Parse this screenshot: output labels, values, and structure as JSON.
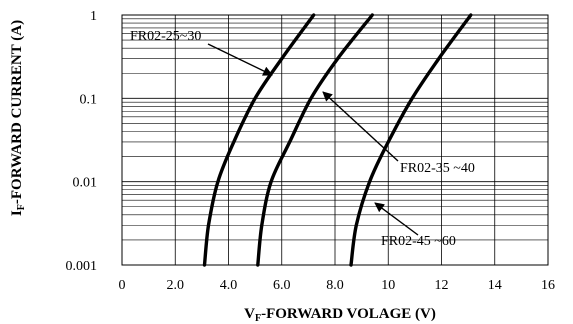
{
  "chart_data": {
    "type": "line",
    "xlabel_main": "V",
    "xlabel_sub": "F",
    "xlabel_rest": "-FORWARD VOLAGE (V)",
    "ylabel_main": "I",
    "ylabel_sub": "F",
    "ylabel_rest": "-FORWARD CURRENT (A)",
    "x_ticks": [
      "0",
      "2.0",
      "4.0",
      "6.0",
      "8.0",
      "10",
      "12",
      "14",
      "16"
    ],
    "y_ticks": [
      "1",
      "0.1",
      "0.01",
      "0.001"
    ],
    "xlim": [
      0,
      16
    ],
    "ylim": [
      0.001,
      1
    ],
    "yscale": "log",
    "grid": true,
    "series": [
      {
        "name": "FR02-25~30",
        "x": [
          3.1,
          3.25,
          3.6,
          4.2,
          5.0,
          6.0,
          7.2
        ],
        "y": [
          0.001,
          0.003,
          0.01,
          0.03,
          0.1,
          0.3,
          1
        ]
      },
      {
        "name": "FR02-35  ~40",
        "x": [
          5.1,
          5.25,
          5.6,
          6.3,
          7.1,
          8.1,
          9.4
        ],
        "y": [
          0.001,
          0.003,
          0.01,
          0.03,
          0.1,
          0.3,
          1
        ]
      },
      {
        "name": "FR02-45 ~60",
        "x": [
          8.6,
          8.8,
          9.3,
          10.0,
          10.9,
          11.9,
          13.1
        ],
        "y": [
          0.001,
          0.003,
          0.01,
          0.03,
          0.1,
          0.3,
          1
        ]
      }
    ]
  }
}
